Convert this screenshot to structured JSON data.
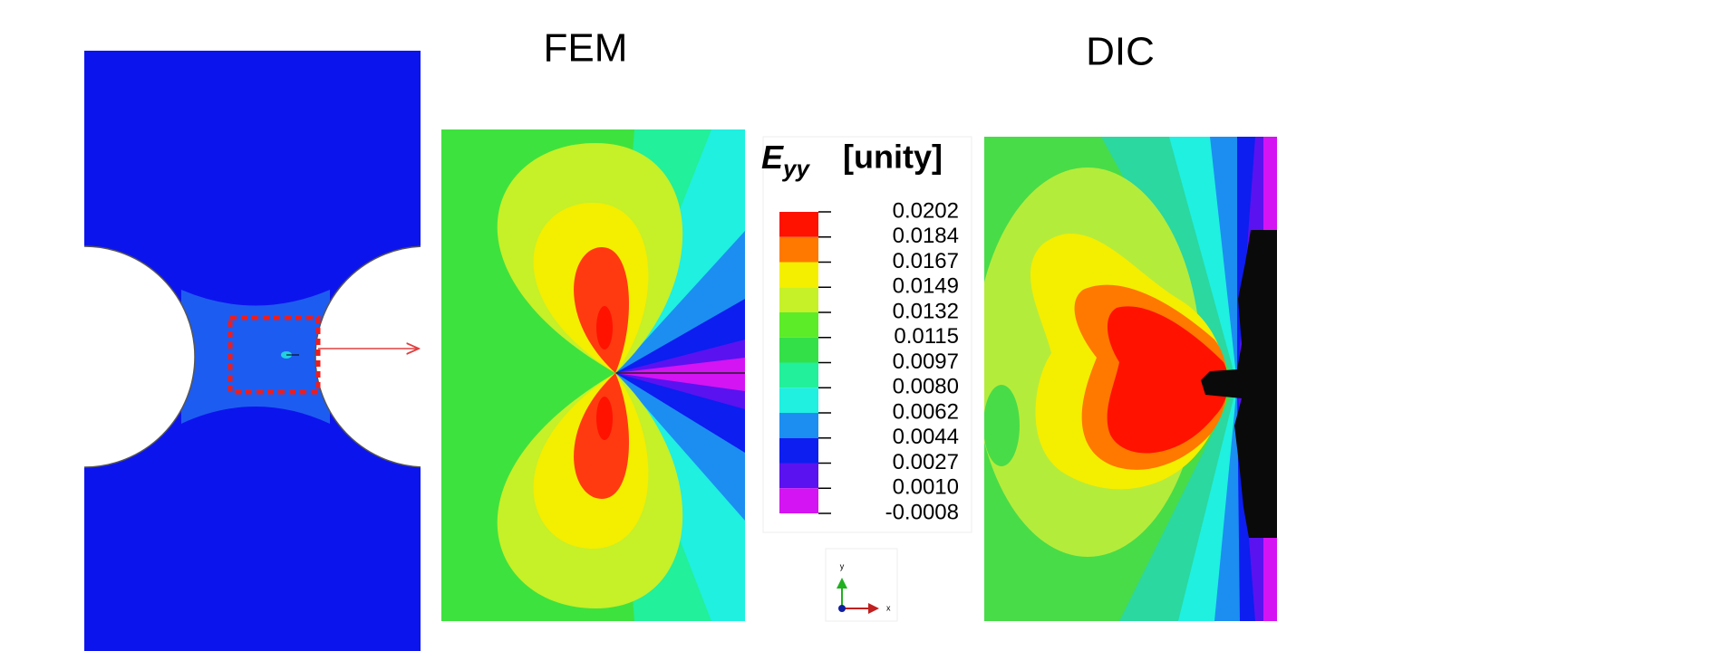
{
  "figure": {
    "titles": {
      "fem": "FEM",
      "dic": "DIC"
    },
    "legend": {
      "symbol": "E",
      "subscript": "yy",
      "unit": "[unity]",
      "labels": [
        "0.0202",
        "0.0184",
        "0.0167",
        "0.0149",
        "0.0132",
        "0.0115",
        "0.0097",
        "0.0080",
        "0.0062",
        "0.0044",
        "0.0027",
        "0.0010",
        "-0.0008"
      ],
      "colors": [
        "#ff1200",
        "#ff7800",
        "#f4ee00",
        "#c6f028",
        "#5cec28",
        "#34e048",
        "#22f09a",
        "#1ff0e0",
        "#1c8ef2",
        "#0c1ef0",
        "#5a12f0",
        "#d414f2"
      ]
    },
    "triad": {
      "y": "y",
      "x": "x"
    }
  }
}
